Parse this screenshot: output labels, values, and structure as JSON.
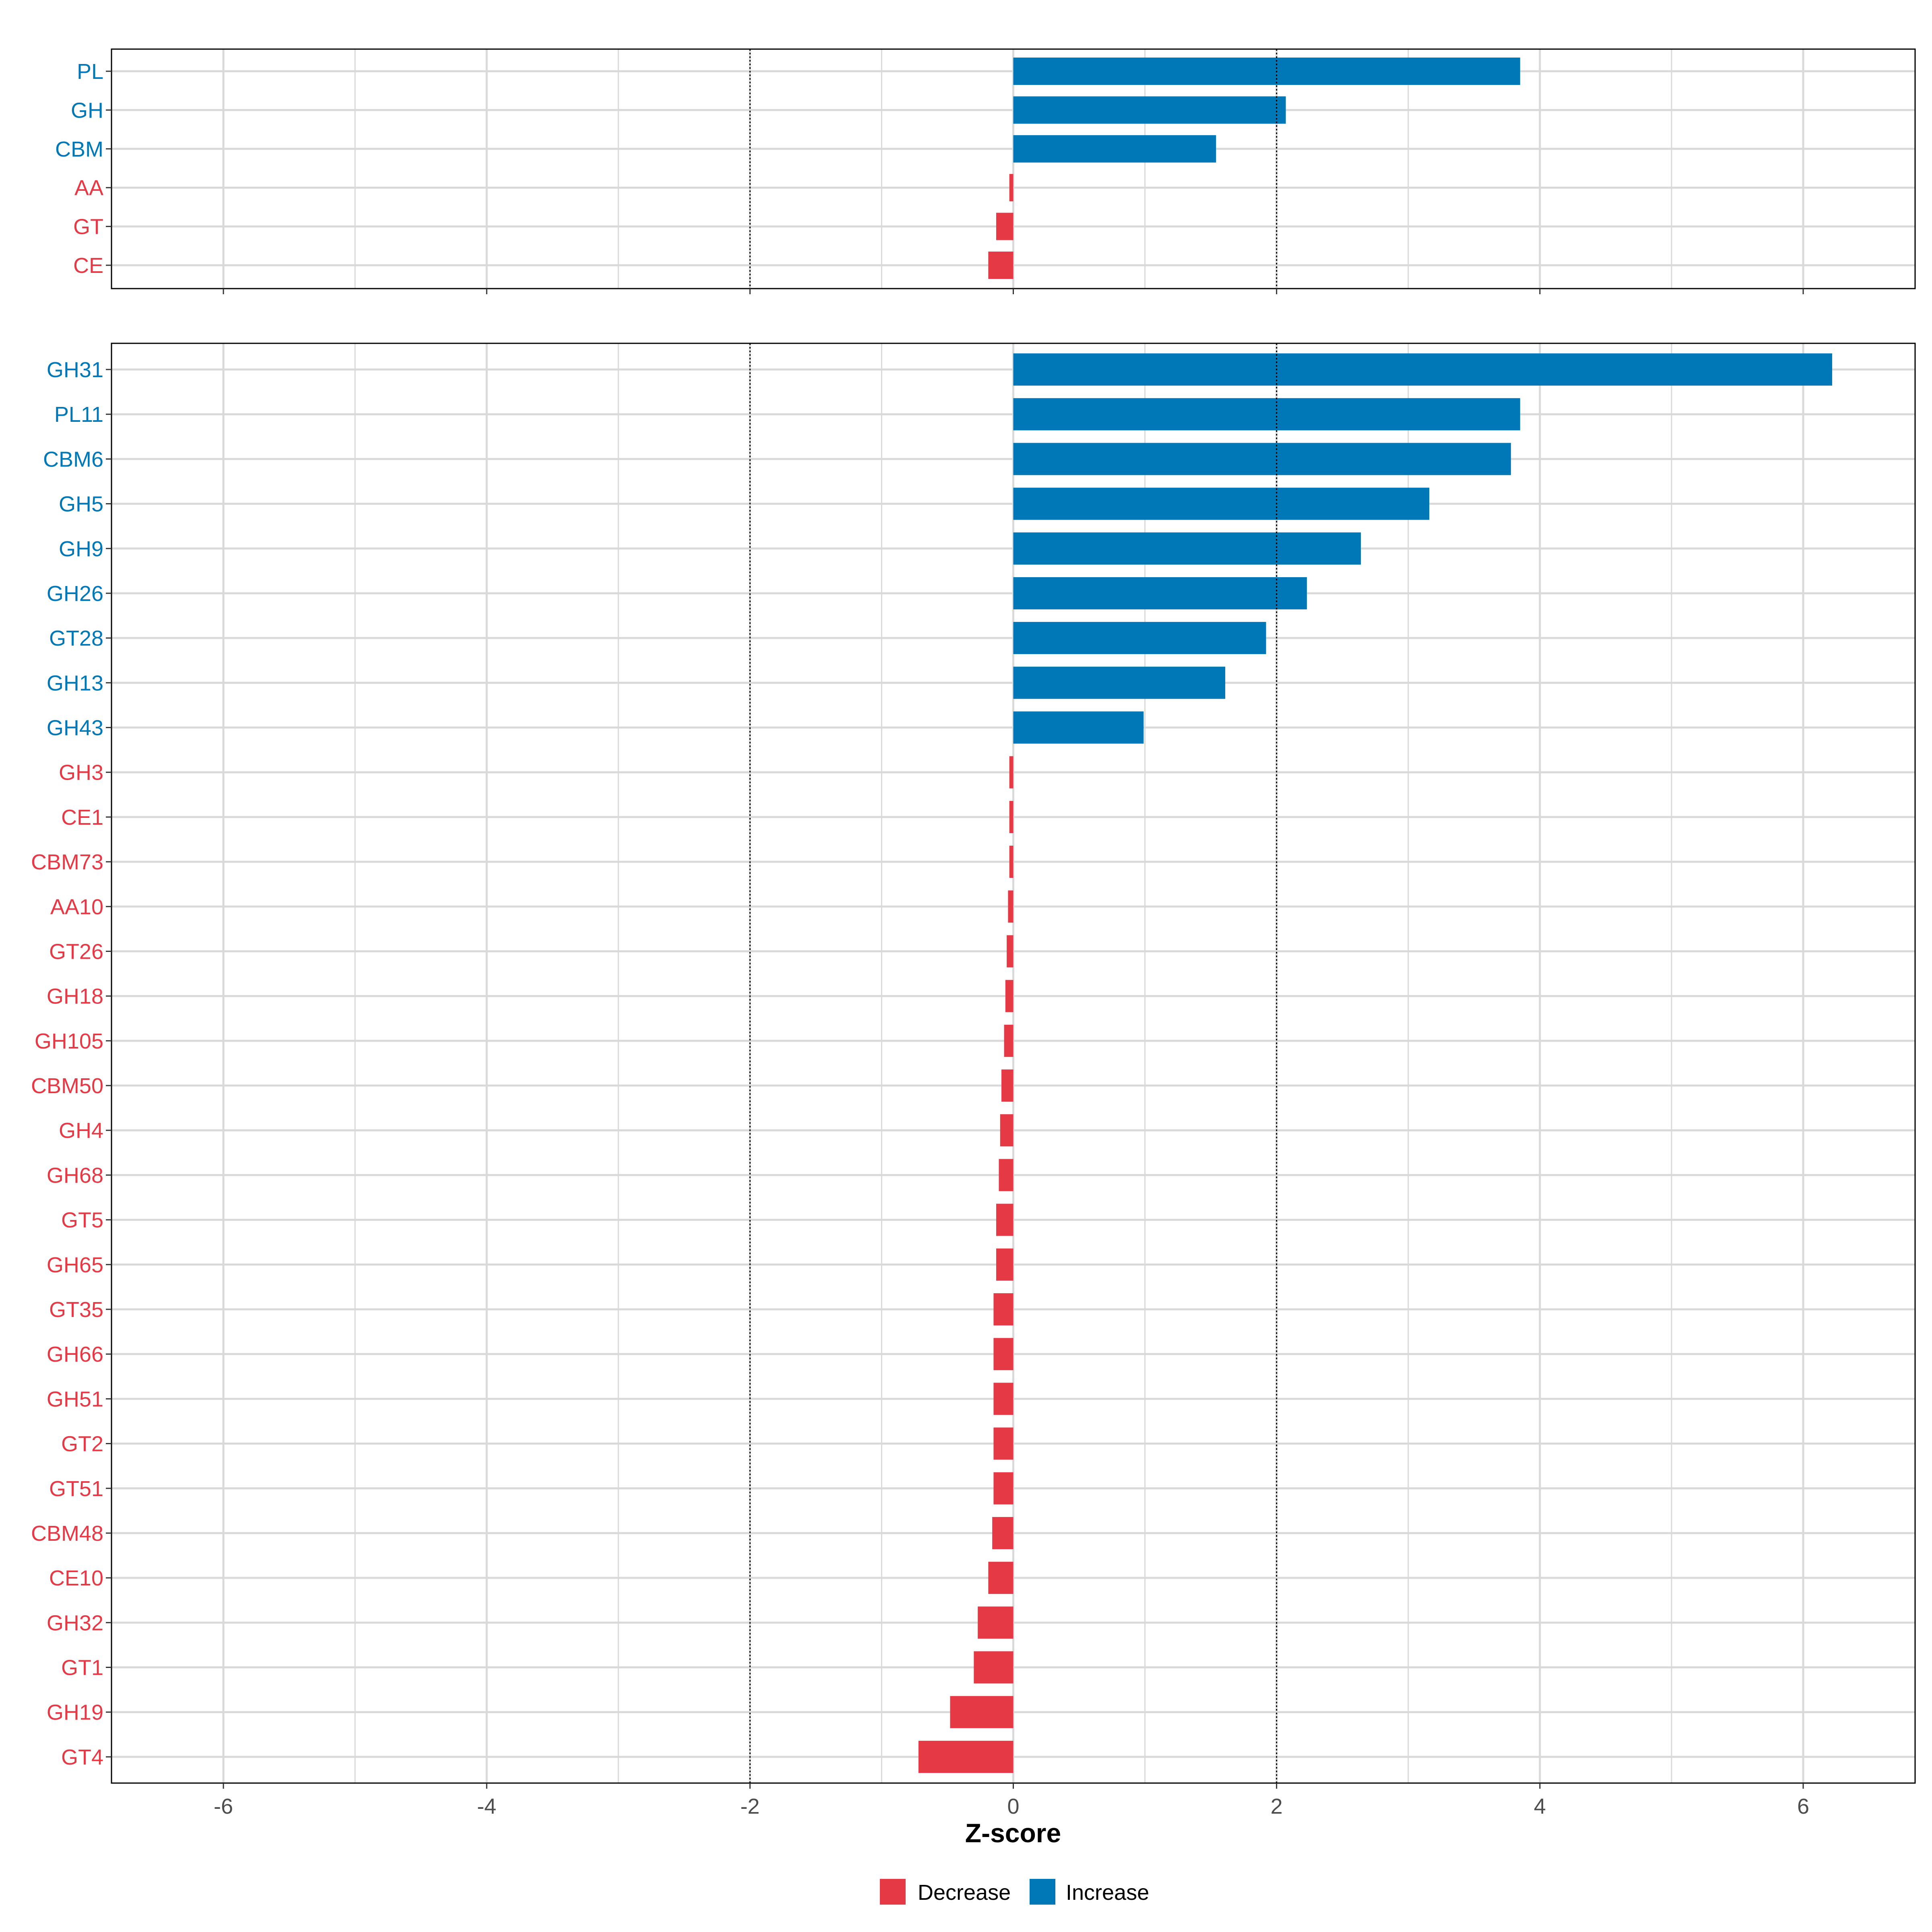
{
  "chart_data": [
    {
      "panel": "top",
      "type": "bar",
      "orientation": "horizontal",
      "categories": [
        "PL",
        "GH",
        "CBM",
        "AA",
        "GT",
        "CE"
      ],
      "values": [
        3.85,
        2.07,
        1.54,
        -0.03,
        -0.13,
        -0.19
      ],
      "xlim": [
        -6.85,
        6.85
      ],
      "x_ticks": [
        -6,
        -4,
        -2,
        0,
        2,
        4,
        6
      ],
      "reference_lines": [
        -2,
        2
      ],
      "grid": true
    },
    {
      "panel": "bottom",
      "type": "bar",
      "orientation": "horizontal",
      "categories": [
        "GH31",
        "PL11",
        "CBM6",
        "GH5",
        "GH9",
        "GH26",
        "GT28",
        "GH13",
        "GH43",
        "GH3",
        "CE1",
        "CBM73",
        "AA10",
        "GT26",
        "GH18",
        "GH105",
        "CBM50",
        "GH4",
        "GH68",
        "GT5",
        "GH65",
        "GT35",
        "GH66",
        "GH51",
        "GT2",
        "GT51",
        "CBM48",
        "CE10",
        "GH32",
        "GT1",
        "GH19",
        "GT4"
      ],
      "values": [
        6.22,
        3.85,
        3.78,
        3.16,
        2.64,
        2.23,
        1.92,
        1.61,
        0.99,
        -0.03,
        -0.03,
        -0.03,
        -0.04,
        -0.05,
        -0.06,
        -0.07,
        -0.09,
        -0.1,
        -0.11,
        -0.13,
        -0.13,
        -0.15,
        -0.15,
        -0.15,
        -0.15,
        -0.15,
        -0.16,
        -0.19,
        -0.27,
        -0.3,
        -0.48,
        -0.72
      ],
      "xlim": [
        -6.85,
        6.85
      ],
      "x_ticks": [
        -6,
        -4,
        -2,
        0,
        2,
        4,
        6
      ],
      "x_tick_labels": [
        "-6",
        "-4",
        "-2",
        "0",
        "2",
        "4",
        "6"
      ],
      "reference_lines": [
        -2,
        2
      ],
      "grid": true,
      "xlabel": "Z-score",
      "ylabel": ""
    }
  ],
  "legend": {
    "position": "bottom",
    "items": [
      {
        "label": "Decrease",
        "color": "#e63946"
      },
      {
        "label": "Increase",
        "color": "#0077b6"
      }
    ]
  },
  "colors": {
    "increase": "#0077b6",
    "decrease": "#e63946",
    "grid": "#d9d9d9",
    "reference_line": "#000000"
  }
}
